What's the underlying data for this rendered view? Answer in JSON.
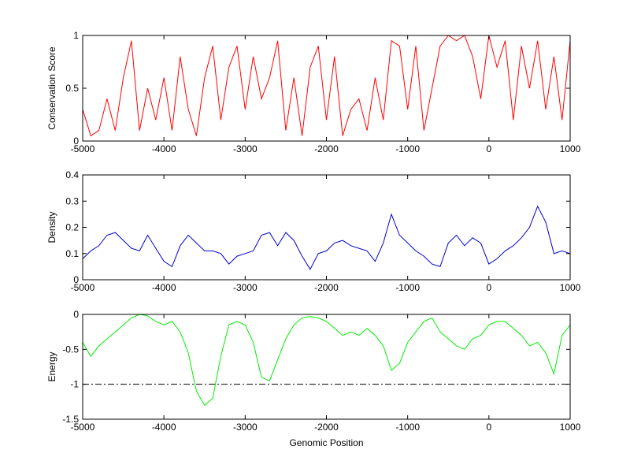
{
  "chart_data": [
    {
      "type": "line",
      "ylabel": "Conservation Score",
      "color": "#ff0000",
      "x": [
        -5000,
        -4900,
        -4800,
        -4700,
        -4600,
        -4500,
        -4400,
        -4300,
        -4200,
        -4100,
        -4000,
        -3900,
        -3800,
        -3700,
        -3600,
        -3500,
        -3400,
        -3300,
        -3200,
        -3100,
        -3000,
        -2900,
        -2800,
        -2700,
        -2600,
        -2500,
        -2400,
        -2300,
        -2200,
        -2100,
        -2000,
        -1900,
        -1800,
        -1700,
        -1600,
        -1500,
        -1400,
        -1300,
        -1200,
        -1100,
        -1000,
        -900,
        -800,
        -700,
        -600,
        -500,
        -400,
        -300,
        -200,
        -100,
        0,
        100,
        200,
        300,
        400,
        500,
        600,
        700,
        800,
        900,
        1000
      ],
      "values": [
        0.3,
        0.05,
        0.1,
        0.4,
        0.1,
        0.6,
        0.95,
        0.1,
        0.5,
        0.2,
        0.6,
        0.1,
        0.8,
        0.3,
        0.05,
        0.6,
        0.9,
        0.2,
        0.7,
        0.9,
        0.3,
        0.8,
        0.4,
        0.6,
        0.95,
        0.1,
        0.6,
        0.05,
        0.7,
        0.9,
        0.2,
        0.8,
        0.05,
        0.3,
        0.4,
        0.1,
        0.6,
        0.2,
        0.95,
        0.9,
        0.3,
        0.9,
        0.1,
        0.5,
        0.9,
        1,
        0.95,
        1,
        0.8,
        0.4,
        1,
        0.7,
        0.95,
        0.2,
        0.9,
        0.5,
        0.95,
        0.3,
        0.8,
        0.2,
        0.95
      ],
      "xlim": [
        -5000,
        1000
      ],
      "xticks": [
        -5000,
        -4000,
        -3000,
        -2000,
        -1000,
        0,
        1000
      ],
      "ylim": [
        0,
        1
      ],
      "yticks": [
        0,
        0.5,
        1
      ]
    },
    {
      "type": "line",
      "ylabel": "Density",
      "color": "#0000cc",
      "x": [
        -5000,
        -4900,
        -4800,
        -4700,
        -4600,
        -4500,
        -4400,
        -4300,
        -4200,
        -4100,
        -4000,
        -3900,
        -3800,
        -3700,
        -3600,
        -3500,
        -3400,
        -3300,
        -3200,
        -3100,
        -3000,
        -2900,
        -2800,
        -2700,
        -2600,
        -2500,
        -2400,
        -2300,
        -2200,
        -2100,
        -2000,
        -1900,
        -1800,
        -1700,
        -1600,
        -1500,
        -1400,
        -1300,
        -1200,
        -1100,
        -1000,
        -900,
        -800,
        -700,
        -600,
        -500,
        -400,
        -300,
        -200,
        -100,
        0,
        100,
        200,
        300,
        400,
        500,
        600,
        700,
        800,
        900,
        1000
      ],
      "values": [
        0.08,
        0.11,
        0.13,
        0.17,
        0.18,
        0.15,
        0.12,
        0.11,
        0.17,
        0.12,
        0.07,
        0.05,
        0.13,
        0.17,
        0.14,
        0.11,
        0.11,
        0.1,
        0.06,
        0.09,
        0.1,
        0.11,
        0.17,
        0.18,
        0.13,
        0.18,
        0.15,
        0.09,
        0.04,
        0.1,
        0.11,
        0.14,
        0.15,
        0.13,
        0.12,
        0.11,
        0.07,
        0.14,
        0.25,
        0.17,
        0.14,
        0.11,
        0.09,
        0.06,
        0.05,
        0.14,
        0.17,
        0.13,
        0.16,
        0.14,
        0.06,
        0.08,
        0.11,
        0.13,
        0.16,
        0.2,
        0.28,
        0.22,
        0.1,
        0.11,
        0.1
      ],
      "xlim": [
        -5000,
        1000
      ],
      "xticks": [
        -5000,
        -4000,
        -3000,
        -2000,
        -1000,
        0,
        1000
      ],
      "ylim": [
        0,
        0.4
      ],
      "yticks": [
        0,
        0.1,
        0.2,
        0.3,
        0.4
      ]
    },
    {
      "type": "line",
      "ylabel": "Energy",
      "xlabel": "Genomic Position",
      "color": "#00ee00",
      "x": [
        -5000,
        -4900,
        -4800,
        -4700,
        -4600,
        -4500,
        -4400,
        -4300,
        -4200,
        -4100,
        -4000,
        -3900,
        -3800,
        -3700,
        -3600,
        -3500,
        -3400,
        -3300,
        -3200,
        -3100,
        -3000,
        -2900,
        -2800,
        -2700,
        -2600,
        -2500,
        -2400,
        -2300,
        -2200,
        -2100,
        -2000,
        -1900,
        -1800,
        -1700,
        -1600,
        -1500,
        -1400,
        -1300,
        -1200,
        -1100,
        -1000,
        -900,
        -800,
        -700,
        -600,
        -500,
        -400,
        -300,
        -200,
        -100,
        0,
        100,
        200,
        300,
        400,
        500,
        600,
        700,
        800,
        900,
        1000
      ],
      "values": [
        -0.4,
        -0.6,
        -0.45,
        -0.35,
        -0.25,
        -0.15,
        -0.05,
        0,
        -0.02,
        -0.1,
        -0.15,
        -0.1,
        -0.25,
        -0.55,
        -1.1,
        -1.3,
        -1.2,
        -0.6,
        -0.15,
        -0.1,
        -0.15,
        -0.4,
        -0.9,
        -0.95,
        -0.65,
        -0.35,
        -0.15,
        -0.05,
        -0.03,
        -0.05,
        -0.1,
        -0.2,
        -0.3,
        -0.25,
        -0.3,
        -0.2,
        -0.3,
        -0.45,
        -0.8,
        -0.7,
        -0.4,
        -0.25,
        -0.1,
        -0.05,
        -0.25,
        -0.35,
        -0.45,
        -0.5,
        -0.35,
        -0.3,
        -0.15,
        -0.1,
        -0.1,
        -0.2,
        -0.3,
        -0.45,
        -0.4,
        -0.55,
        -0.85,
        -0.3,
        -0.15
      ],
      "xlim": [
        -5000,
        1000
      ],
      "xticks": [
        -5000,
        -4000,
        -3000,
        -2000,
        -1000,
        0,
        1000
      ],
      "ylim": [
        -1.5,
        0
      ],
      "yticks": [
        -1.5,
        -1,
        -0.5,
        0
      ],
      "reference_line": {
        "y": -1,
        "style": "dash-dot",
        "color": "#000000"
      }
    }
  ]
}
